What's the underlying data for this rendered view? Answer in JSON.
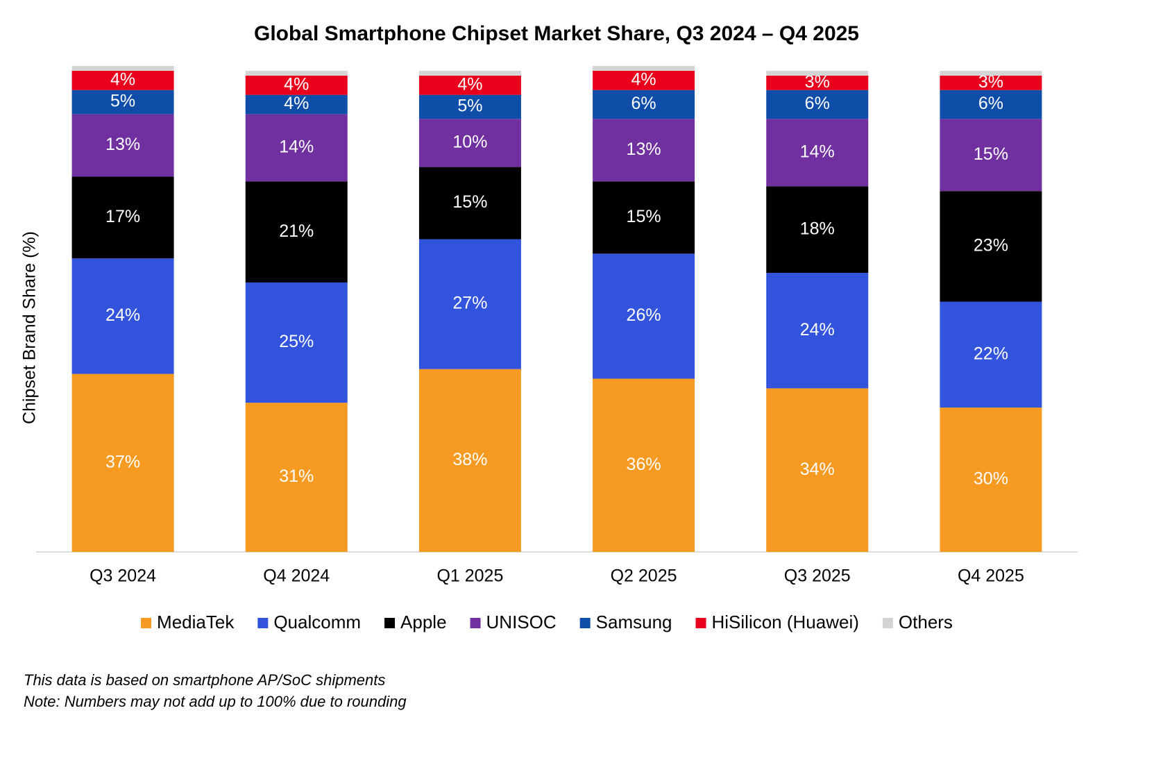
{
  "chart_data": {
    "type": "stacked_bar",
    "title": "Global Smartphone Chipset Market Share, Q3 2024 – Q4 2025",
    "y_label": "Chipset Brand Share (%)",
    "categories": [
      "Q3 2024",
      "Q4 2024",
      "Q1 2025",
      "Q2 2025",
      "Q3 2025",
      "Q4 2025"
    ],
    "ylim": [
      0,
      100
    ],
    "series": [
      {
        "name": "MediaTek",
        "color": "#f79a21",
        "values": [
          37,
          31,
          38,
          36,
          34,
          30
        ],
        "value_labels": [
          "37%",
          "31%",
          "38%",
          "36%",
          "34%",
          "30%"
        ]
      },
      {
        "name": "Qualcomm",
        "color": "#3253dc",
        "values": [
          24,
          25,
          27,
          26,
          24,
          22
        ],
        "value_labels": [
          "24%",
          "25%",
          "27%",
          "26%",
          "24%",
          "22%"
        ]
      },
      {
        "name": "Apple",
        "color": "#000000",
        "values": [
          17,
          21,
          15,
          15,
          18,
          23
        ],
        "value_labels": [
          "17%",
          "21%",
          "15%",
          "15%",
          "18%",
          "23%"
        ]
      },
      {
        "name": "UNISOC",
        "color": "#7030a0",
        "values": [
          13,
          14,
          10,
          13,
          14,
          15
        ],
        "value_labels": [
          "13%",
          "14%",
          "10%",
          "13%",
          "14%",
          "15%"
        ]
      },
      {
        "name": "Samsung",
        "color": "#0f4ea8",
        "values": [
          5,
          4,
          5,
          6,
          6,
          6
        ],
        "value_labels": [
          "5%",
          "4%",
          "5%",
          "6%",
          "6%",
          "6%"
        ]
      },
      {
        "name": "HiSilicon (Huawei)",
        "color": "#e8001c",
        "values": [
          4,
          4,
          4,
          4,
          3,
          3
        ],
        "value_labels": [
          "4%",
          "4%",
          "4%",
          "4%",
          "3%",
          "3%"
        ]
      },
      {
        "name": "Others",
        "color": "#d4d4d4",
        "values": [
          1,
          1,
          1,
          1,
          1,
          1
        ]
      }
    ],
    "notes": [
      "This data is based on smartphone AP/SoC shipments",
      "Note: Numbers may not add up to 100% due to rounding"
    ]
  }
}
